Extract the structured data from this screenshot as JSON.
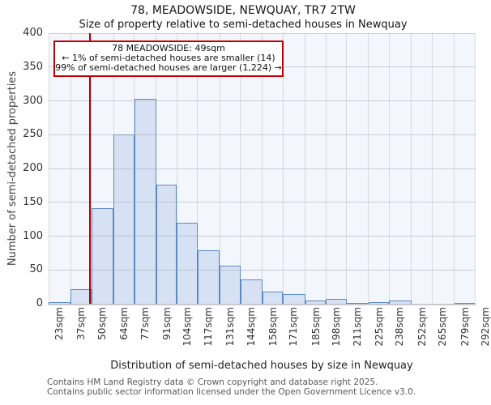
{
  "chart_data": {
    "type": "bar",
    "title": "78, MEADOWSIDE, NEWQUAY, TR7 2TW",
    "subtitle": "Size of property relative to semi-detached houses in Newquay",
    "xlabel": "Distribution of semi-detached houses by size in Newquay",
    "ylabel": "Number of semi-detached properties",
    "x_tick_labels": [
      "23sqm",
      "37sqm",
      "50sqm",
      "64sqm",
      "77sqm",
      "91sqm",
      "104sqm",
      "117sqm",
      "131sqm",
      "144sqm",
      "158sqm",
      "171sqm",
      "185sqm",
      "198sqm",
      "211sqm",
      "225sqm",
      "238sqm",
      "252sqm",
      "265sqm",
      "279sqm",
      "292sqm"
    ],
    "bin_edges_sqm": [
      23,
      37,
      50,
      64,
      77,
      91,
      104,
      117,
      131,
      144,
      158,
      171,
      185,
      198,
      211,
      225,
      238,
      252,
      265,
      279,
      292
    ],
    "values": [
      3,
      22,
      141,
      250,
      303,
      176,
      120,
      79,
      56,
      36,
      18,
      14,
      5,
      7,
      1,
      2,
      5,
      0,
      0,
      1
    ],
    "y_ticks": [
      0,
      50,
      100,
      150,
      200,
      250,
      300,
      350,
      400
    ],
    "ylim": [
      0,
      400
    ],
    "xlim_sqm": [
      23,
      292
    ],
    "grid": true,
    "marker": {
      "value_sqm": 49
    }
  },
  "annotation": {
    "line1": "78 MEADOWSIDE: 49sqm",
    "line2": "← 1% of semi-detached houses are smaller (14)",
    "line3": "99% of semi-detached houses are larger (1,224) →"
  },
  "colors": {
    "bar_fill": "#d6e1f3",
    "bar_stroke": "#5a8ac5",
    "marker_line": "#b40000",
    "annotation_border": "#c00000",
    "plot_bg": "#f3f6fc",
    "grid": "#d7dade"
  },
  "footer": {
    "line1": "Contains HM Land Registry data © Crown copyright and database right 2025.",
    "line2": "Contains public sector information licensed under the Open Government Licence v3.0."
  }
}
